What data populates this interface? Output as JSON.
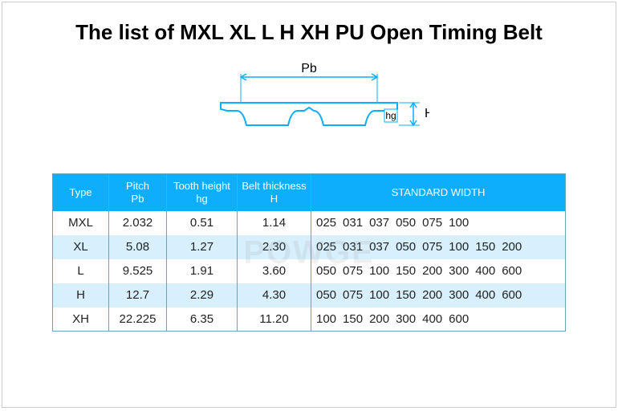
{
  "title": "The list of  MXL XL L H XH  PU Open Timing Belt",
  "diagram": {
    "stroke": "#0faefd",
    "label_color": "#222222",
    "pb_label": "Pb",
    "hg_label": "hg",
    "h_label": "H"
  },
  "table": {
    "header_bg": "#0faefd",
    "header_fg": "#ffffff",
    "border_color": "#69a4b4",
    "alt_row_bg": "#d8f0fd",
    "headers": {
      "type": "Type",
      "pitch": "Pitch\nPb",
      "tooth": "Tooth height\nhg",
      "thick": "Belt thickness\nH",
      "width": "STANDARD  WIDTH"
    },
    "rows": [
      {
        "type": "MXL",
        "pitch": "2.032",
        "tooth": "0.51",
        "thick": "1.14",
        "widths": [
          "025",
          "031",
          "037",
          "050",
          "075",
          "100"
        ]
      },
      {
        "type": "XL",
        "pitch": "5.08",
        "tooth": "1.27",
        "thick": "2.30",
        "widths": [
          "025",
          "031",
          "037",
          "050",
          "075",
          "100",
          "150",
          "200"
        ]
      },
      {
        "type": "L",
        "pitch": "9.525",
        "tooth": "1.91",
        "thick": "3.60",
        "widths": [
          "050",
          "075",
          "100",
          "150",
          "200",
          "300",
          "400",
          "600"
        ]
      },
      {
        "type": "H",
        "pitch": "12.7",
        "tooth": "2.29",
        "thick": "4.30",
        "widths": [
          "050",
          "075",
          "100",
          "150",
          "200",
          "300",
          "400",
          "600"
        ]
      },
      {
        "type": "XH",
        "pitch": "22.225",
        "tooth": "6.35",
        "thick": "11.20",
        "widths": [
          "100",
          "150",
          "200",
          "300",
          "400",
          "600"
        ]
      }
    ]
  },
  "watermark": "POWGE"
}
